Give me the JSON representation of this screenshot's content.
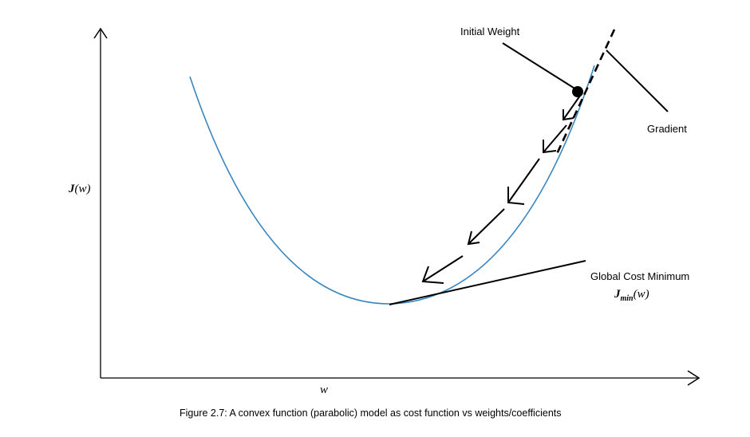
{
  "labels": {
    "initial_weight": "Initial Weight",
    "gradient": "Gradient",
    "global_min": "Global Cost Minimum",
    "y_axis_J": "J",
    "y_axis_arg": "(w)",
    "x_axis": "w",
    "jmin_J": "J",
    "jmin_sub": "min",
    "jmin_arg": "(w)"
  },
  "caption": "Figure 2.7: A convex function (parabolic) model as cost function vs  weights/coefficients",
  "colors": {
    "curve": "#3a87c0",
    "ink": "#000000"
  }
}
